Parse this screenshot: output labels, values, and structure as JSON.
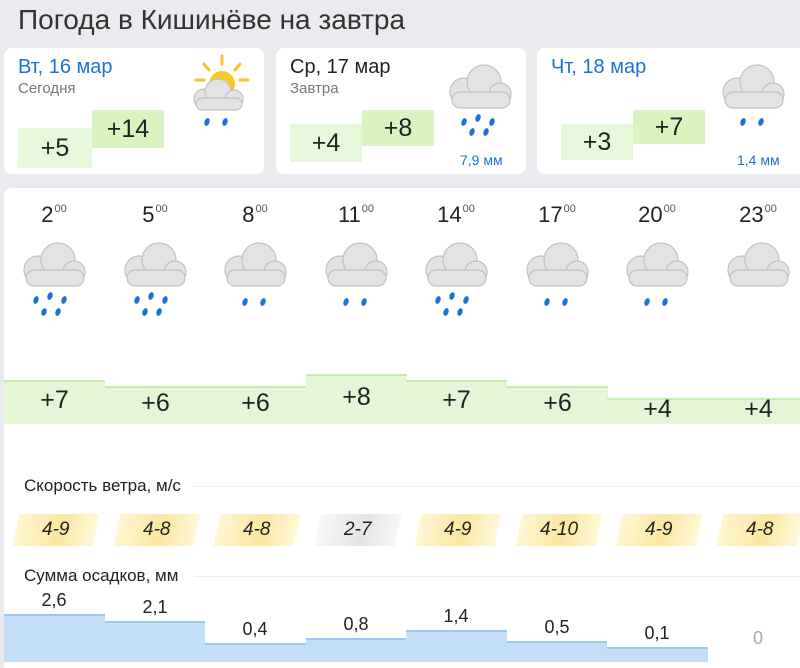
{
  "page_title": "Погода в Кишинёве на завтра",
  "days": [
    {
      "date": "Вт, 16 мар",
      "sub": "Сегодня",
      "min": "+5",
      "max": "+14",
      "icon": "sun-cloud-rain-icon",
      "precip": ""
    },
    {
      "date": "Ср, 17 мар",
      "sub": "Завтра",
      "min": "+4",
      "max": "+8",
      "icon": "cloud-rain-icon",
      "precip": "7,9 мм"
    },
    {
      "date": "Чт, 18 мар",
      "sub": "",
      "min": "+3",
      "max": "+7",
      "icon": "cloud-light-rain-icon",
      "precip": "1,4 мм"
    }
  ],
  "hourly": {
    "hours": [
      {
        "h": "2",
        "m": "00",
        "temp": "+7",
        "temp_value": 7,
        "wind": "4-9",
        "wind_style": "yellow",
        "precip": "2,6",
        "precip_value": 2.6,
        "icon": "cloud-rain-icon"
      },
      {
        "h": "5",
        "m": "00",
        "temp": "+6",
        "temp_value": 6,
        "wind": "4-8",
        "wind_style": "yellow",
        "precip": "2,1",
        "precip_value": 2.1,
        "icon": "cloud-rain-icon"
      },
      {
        "h": "8",
        "m": "00",
        "temp": "+6",
        "temp_value": 6,
        "wind": "4-8",
        "wind_style": "yellow",
        "precip": "0,4",
        "precip_value": 0.4,
        "icon": "cloud-light-rain-icon"
      },
      {
        "h": "11",
        "m": "00",
        "temp": "+8",
        "temp_value": 8,
        "wind": "2-7",
        "wind_style": "gray",
        "precip": "0,8",
        "precip_value": 0.8,
        "icon": "cloud-light-rain-icon"
      },
      {
        "h": "14",
        "m": "00",
        "temp": "+7",
        "temp_value": 7,
        "wind": "4-9",
        "wind_style": "yellow",
        "precip": "1,4",
        "precip_value": 1.4,
        "icon": "cloud-rain-icon"
      },
      {
        "h": "17",
        "m": "00",
        "temp": "+6",
        "temp_value": 6,
        "wind": "4-10",
        "wind_style": "yellow",
        "precip": "0,5",
        "precip_value": 0.5,
        "icon": "cloud-light-rain-icon"
      },
      {
        "h": "20",
        "m": "00",
        "temp": "+4",
        "temp_value": 4,
        "wind": "4-9",
        "wind_style": "yellow",
        "precip": "0,1",
        "precip_value": 0.1,
        "icon": "cloud-light-rain-icon"
      },
      {
        "h": "23",
        "m": "00",
        "temp": "+4",
        "temp_value": 4,
        "wind": "4-8",
        "wind_style": "yellow",
        "precip": "0",
        "precip_value": 0,
        "icon": "cloud-icon"
      }
    ]
  },
  "wind_section": {
    "title": "Скорость ветра, м/с"
  },
  "precip_section": {
    "title": "Сумма осадков, мм"
  },
  "colors": {
    "accent_blue": "#1a72d9",
    "temp_green": "#e5f6d7",
    "wind_yellow": "#fbe7a1",
    "water_blue": "#c5def8"
  }
}
